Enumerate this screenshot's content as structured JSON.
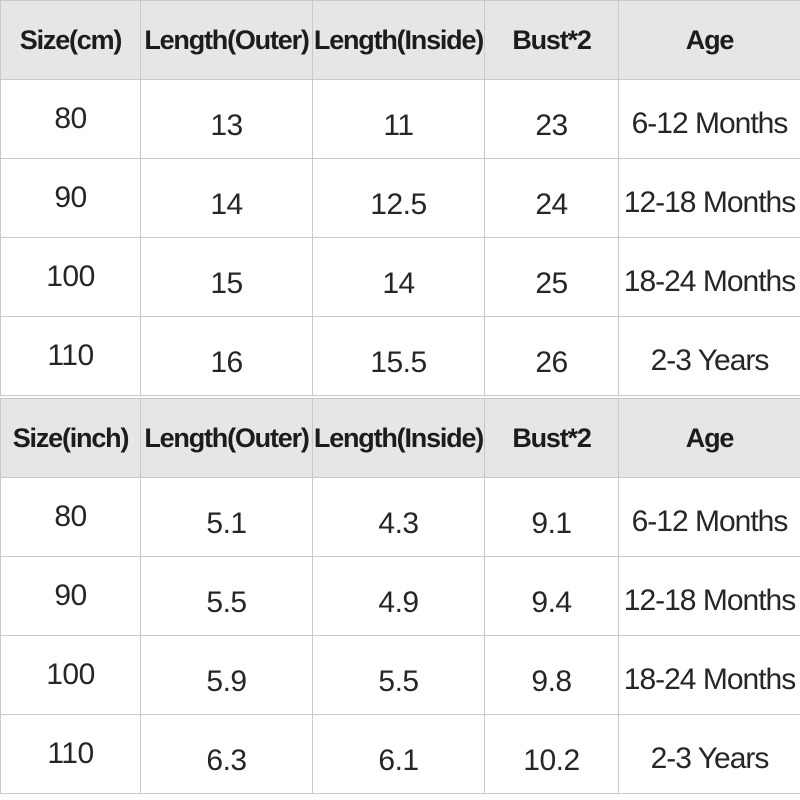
{
  "tables": [
    {
      "headers": [
        "Size(cm)",
        "Length(Outer)",
        "Length(Inside)",
        "Bust*2",
        "Age"
      ],
      "rows": [
        [
          "80",
          "13",
          "11",
          "23",
          "6-12 Months"
        ],
        [
          "90",
          "14",
          "12.5",
          "24",
          "12-18 Months"
        ],
        [
          "100",
          "15",
          "14",
          "25",
          "18-24 Months"
        ],
        [
          "110",
          "16",
          "15.5",
          "26",
          "2-3 Years"
        ]
      ]
    },
    {
      "headers": [
        "Size(inch)",
        "Length(Outer)",
        "Length(Inside)",
        "Bust*2",
        "Age"
      ],
      "rows": [
        [
          "80",
          "5.1",
          "4.3",
          "9.1",
          "6-12 Months"
        ],
        [
          "90",
          "5.5",
          "4.9",
          "9.4",
          "12-18 Months"
        ],
        [
          "100",
          "5.9",
          "5.5",
          "9.8",
          "18-24 Months"
        ],
        [
          "110",
          "6.3",
          "6.1",
          "10.2",
          "2-3 Years"
        ]
      ]
    }
  ],
  "colors": {
    "header_background": "#e6e6e6",
    "grid_line": "#c9c9c9",
    "text": "#222222"
  }
}
